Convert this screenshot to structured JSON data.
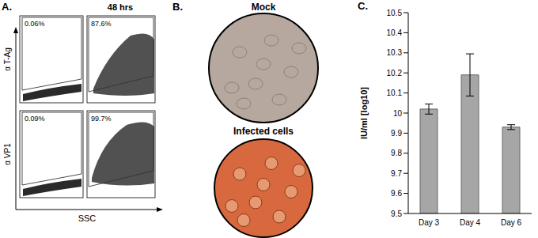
{
  "chart_data": {
    "type": "bar",
    "title": "C.",
    "categories": [
      "Day 3",
      "Day 4",
      "Day 6"
    ],
    "values": [
      10.02,
      10.19,
      9.93
    ],
    "errors": [
      0.025,
      0.105,
      0.012
    ],
    "ylabel": "IU/ml [log10]",
    "ylim": [
      9.5,
      10.5
    ],
    "yticks": [
      9.5,
      9.6,
      9.7,
      9.8,
      9.9,
      10,
      10.1,
      10.2,
      10.3,
      10.4,
      10.5
    ],
    "color": "#a6a6a6"
  },
  "panel_a": {
    "label": "A.",
    "title": "48 hrs",
    "xlabel": "SSC",
    "rows": [
      {
        "ylabel": "α T-Ag",
        "gates": [
          "0.06%",
          "87.6%"
        ]
      },
      {
        "ylabel": "α VP1",
        "gates": [
          "0.09%",
          "99.7%"
        ]
      }
    ]
  },
  "panel_b": {
    "label": "B.",
    "images": [
      {
        "title": "Mock"
      },
      {
        "title": "Infected cells"
      }
    ]
  }
}
